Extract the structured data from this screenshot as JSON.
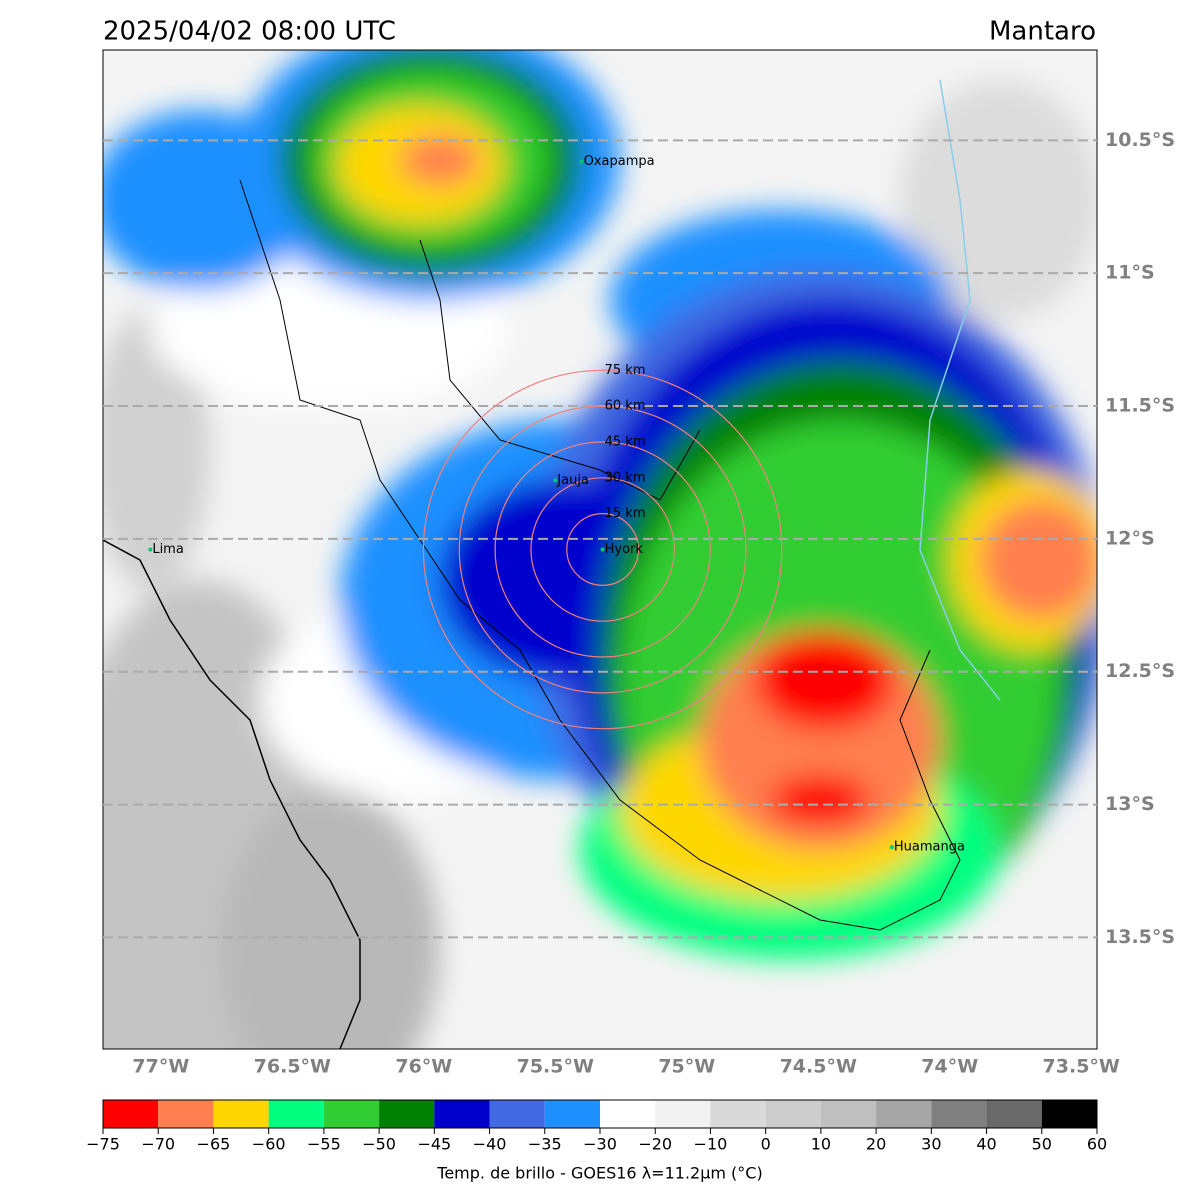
{
  "map": {
    "title": "2025/04/02 08:00 UTC",
    "region": "Mantaro",
    "xlim": [
      -77.22,
      -73.44
    ],
    "ylim": [
      -13.92,
      -10.16
    ],
    "xticks": [
      {
        "value": -77,
        "label": "77°W"
      },
      {
        "value": -76.5,
        "label": "76.5°W"
      },
      {
        "value": -76,
        "label": "76°W"
      },
      {
        "value": -75.5,
        "label": "75.5°W"
      },
      {
        "value": -75,
        "label": "75°W"
      },
      {
        "value": -74.5,
        "label": "74.5°W"
      },
      {
        "value": -74,
        "label": "74°W"
      },
      {
        "value": -73.5,
        "label": "73.5°W"
      }
    ],
    "yticks": [
      {
        "value": -10.5,
        "label": "10.5°S"
      },
      {
        "value": -11,
        "label": "11°S"
      },
      {
        "value": -11.5,
        "label": "11.5°S"
      },
      {
        "value": -12,
        "label": "12°S"
      },
      {
        "value": -12.5,
        "label": "12.5°S"
      },
      {
        "value": -13,
        "label": "13°S"
      },
      {
        "value": -13.5,
        "label": "13.5°S"
      }
    ],
    "cities": [
      {
        "name": "Oxapampa",
        "lon": -75.4,
        "lat": -10.58
      },
      {
        "name": "Lima",
        "lon": -77.04,
        "lat": -12.04
      },
      {
        "name": "Jauja",
        "lon": -75.5,
        "lat": -11.78
      },
      {
        "name": "Hyork",
        "lon": -75.32,
        "lat": -12.04
      },
      {
        "name": "Huamanga",
        "lon": -74.22,
        "lat": -13.16
      }
    ],
    "rings": {
      "lon": -75.32,
      "lat": -12.04,
      "color": "#f08080",
      "radii": [
        {
          "value": 15,
          "label": "15 km"
        },
        {
          "value": 30,
          "label": "30 km"
        },
        {
          "value": 45,
          "label": "45 km"
        },
        {
          "value": 60,
          "label": "60 km"
        },
        {
          "value": 75,
          "label": "75 km"
        }
      ]
    },
    "colorbar": {
      "label": "Temp. de brillo - GOES16 λ=11.2μm (°C)",
      "bounds": [
        -75,
        -70,
        -65,
        -60,
        -55,
        -50,
        -45,
        -40,
        -35,
        -30,
        -20,
        -10,
        0,
        10,
        20,
        30,
        40,
        50,
        60
      ],
      "colors": [
        "#ff0000",
        "#ff7f50",
        "#ffd700",
        "#00ff7f",
        "#32cd32",
        "#008000",
        "#0000cd",
        "#4169e1",
        "#1e90ff",
        "#ffffff",
        "#f2f2f2",
        "#d9d9d9",
        "#cccccc",
        "#bfbfbf",
        "#a6a6a6",
        "#808080",
        "#696969",
        "#000000"
      ],
      "ticks": [
        {
          "value": -75,
          "label": "−75"
        },
        {
          "value": -70,
          "label": "−70"
        },
        {
          "value": -65,
          "label": "−65"
        },
        {
          "value": -60,
          "label": "−60"
        },
        {
          "value": -55,
          "label": "−55"
        },
        {
          "value": -50,
          "label": "−50"
        },
        {
          "value": -45,
          "label": "−45"
        },
        {
          "value": -40,
          "label": "−40"
        },
        {
          "value": -35,
          "label": "−35"
        },
        {
          "value": -30,
          "label": "−30"
        },
        {
          "value": -20,
          "label": "−20"
        },
        {
          "value": -10,
          "label": "−10"
        },
        0,
        10,
        20,
        30,
        40,
        50,
        60
      ]
    }
  }
}
